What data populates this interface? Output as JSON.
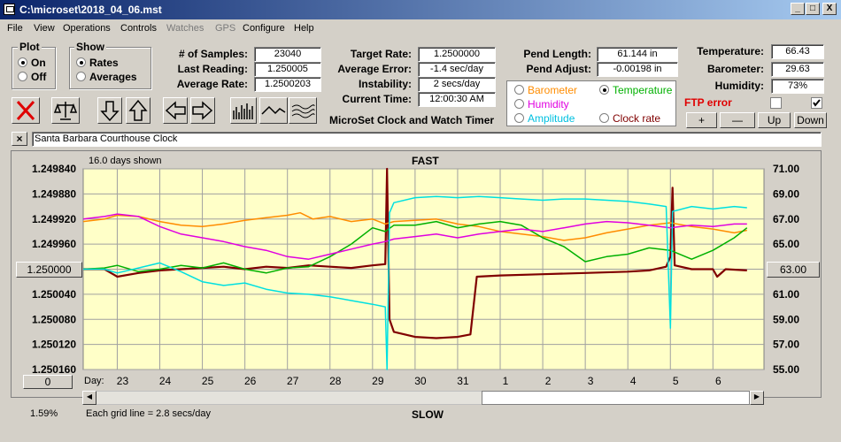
{
  "window": {
    "title": "C:\\microset\\2018_04_06.mst",
    "btn_min": "_",
    "btn_max": "□",
    "btn_close": "X"
  },
  "menu": [
    "File",
    "View",
    "Operations",
    "Controls",
    "Watches",
    "GPS",
    "Configure",
    "Help"
  ],
  "plot_group": {
    "title": "Plot",
    "on": "On",
    "off": "Off",
    "selected": "On"
  },
  "show_group": {
    "title": "Show",
    "rates": "Rates",
    "averages": "Averages",
    "selected": "Rates"
  },
  "stats": {
    "samples_label": "# of Samples:",
    "samples": "23040",
    "last_label": "Last Reading:",
    "last": "1.250005",
    "avg_rate_label": "Average Rate:",
    "avg_rate": "1.2500203",
    "target_label": "Target Rate:",
    "target": "1.2500000",
    "avg_err_label": "Average Error:",
    "avg_err": "-1.4 sec/day",
    "instab_label": "Instability:",
    "instab": "2 secs/day",
    "time_label": "Current Time:",
    "time": "12:00:30 AM",
    "pend_len_label": "Pend Length:",
    "pend_len": "61.144 in",
    "pend_adj_label": "Pend Adjust:",
    "pend_adj": "-0.00198 in",
    "temp_label": "Temperature:",
    "temp": "66.43",
    "baro_label": "Barometer:",
    "baro": "29.63",
    "hum_label": "Humidity:",
    "hum": "73%"
  },
  "app_title": "MicroSet Clock and Watch Timer",
  "sensor_options": {
    "barometer": "Barometer",
    "temperature": "Temperature",
    "humidity": "Humidity",
    "amplitude": "Amplitude",
    "clock_rate": "Clock rate",
    "selected": "Temperature"
  },
  "ftp": {
    "label": "FTP error",
    "checked": false,
    "check2": true
  },
  "scale_buttons": {
    "plus": "+",
    "minus": "—",
    "up": "Up",
    "down": "Down"
  },
  "clock_name": "Santa Barbara Courthouse Clock",
  "close_x": "×",
  "colors": {
    "barometer": "#ff8c00",
    "temperature": "#00b000",
    "humidity": "#e000e0",
    "amplitude": "#00e0e0",
    "rate": "#800000",
    "chart_bg": "#ffffc8"
  },
  "chart_data": {
    "type": "line",
    "days_shown": "16.0 days shown",
    "top_label": "FAST",
    "bottom_label": "SLOW",
    "grid_note": "Each grid line = 2.8 secs/day",
    "day_label": "Day:",
    "left_axis": {
      "ticks": [
        "1.249840",
        "1.249880",
        "1.249920",
        "1.249960",
        "1.250000",
        "1.250040",
        "1.250080",
        "1.250120",
        "1.250160"
      ],
      "range": [
        1.24984,
        1.25016
      ]
    },
    "right_axis": {
      "ticks": [
        "71.00",
        "69.00",
        "67.00",
        "65.00",
        "63.00",
        "61.00",
        "59.00",
        "57.00",
        "55.00"
      ],
      "range": [
        55,
        71
      ]
    },
    "left_button": "1.250000",
    "right_button": "63.00",
    "zero_button": "0",
    "percent": "1.59%",
    "days": [
      "23",
      "24",
      "25",
      "26",
      "27",
      "28",
      "29",
      "30",
      "31",
      "1",
      "2",
      "3",
      "4",
      "5",
      "6"
    ],
    "x_range": [
      22.2,
      38.2
    ],
    "series": [
      {
        "key": "rate",
        "color": "#800000",
        "points": [
          [
            22.2,
            63.0
          ],
          [
            22.7,
            63.0
          ],
          [
            23.0,
            62.4
          ],
          [
            23.5,
            62.7
          ],
          [
            24.0,
            62.9
          ],
          [
            24.5,
            63.0
          ],
          [
            25.0,
            63.1
          ],
          [
            25.5,
            63.2
          ],
          [
            26.0,
            63.0
          ],
          [
            26.5,
            63.2
          ],
          [
            27.0,
            63.1
          ],
          [
            27.5,
            63.3
          ],
          [
            28.0,
            63.2
          ],
          [
            28.5,
            63.1
          ],
          [
            29.0,
            63.3
          ],
          [
            29.3,
            63.4
          ],
          [
            29.34,
            71.0
          ],
          [
            29.4,
            59.0
          ],
          [
            29.5,
            58.0
          ],
          [
            30.0,
            57.6
          ],
          [
            30.5,
            57.5
          ],
          [
            31.0,
            57.6
          ],
          [
            31.3,
            57.8
          ],
          [
            31.45,
            62.4
          ],
          [
            32.0,
            62.5
          ],
          [
            33.0,
            62.6
          ],
          [
            34.0,
            62.7
          ],
          [
            35.0,
            62.8
          ],
          [
            35.5,
            62.9
          ],
          [
            35.9,
            63.2
          ],
          [
            36.0,
            64.0
          ],
          [
            36.05,
            69.5
          ],
          [
            36.1,
            63.3
          ],
          [
            36.5,
            63.0
          ],
          [
            37.0,
            63.0
          ],
          [
            37.1,
            62.4
          ],
          [
            37.3,
            63.0
          ],
          [
            37.8,
            62.9
          ]
        ]
      },
      {
        "key": "barometer",
        "color": "#ff8c00",
        "points": [
          [
            22.2,
            66.8
          ],
          [
            22.7,
            67.0
          ],
          [
            23.0,
            67.3
          ],
          [
            23.5,
            67.2
          ],
          [
            24.0,
            66.8
          ],
          [
            24.5,
            66.5
          ],
          [
            25.0,
            66.4
          ],
          [
            25.5,
            66.6
          ],
          [
            26.0,
            66.9
          ],
          [
            26.5,
            67.1
          ],
          [
            27.0,
            67.3
          ],
          [
            27.3,
            67.5
          ],
          [
            27.6,
            67.0
          ],
          [
            28.0,
            67.2
          ],
          [
            28.5,
            66.8
          ],
          [
            29.0,
            67.0
          ],
          [
            29.3,
            66.6
          ],
          [
            29.5,
            66.8
          ],
          [
            30.0,
            66.9
          ],
          [
            30.5,
            67.0
          ],
          [
            31.0,
            66.6
          ],
          [
            31.5,
            66.4
          ],
          [
            32.0,
            66.0
          ],
          [
            32.5,
            65.8
          ],
          [
            33.0,
            65.6
          ],
          [
            33.5,
            65.3
          ],
          [
            34.0,
            65.5
          ],
          [
            34.5,
            65.9
          ],
          [
            35.0,
            66.2
          ],
          [
            35.5,
            66.5
          ],
          [
            36.0,
            66.7
          ],
          [
            36.5,
            66.4
          ],
          [
            37.0,
            66.2
          ],
          [
            37.5,
            65.9
          ],
          [
            37.8,
            66.1
          ]
        ]
      },
      {
        "key": "temperature",
        "color": "#00b000",
        "points": [
          [
            22.2,
            63.0
          ],
          [
            22.7,
            63.1
          ],
          [
            23.0,
            63.3
          ],
          [
            23.5,
            62.8
          ],
          [
            24.0,
            63.0
          ],
          [
            24.5,
            63.3
          ],
          [
            25.0,
            63.1
          ],
          [
            25.5,
            63.5
          ],
          [
            26.0,
            63.0
          ],
          [
            26.5,
            62.7
          ],
          [
            27.0,
            63.1
          ],
          [
            27.5,
            63.2
          ],
          [
            28.0,
            64.0
          ],
          [
            28.5,
            65.0
          ],
          [
            29.0,
            66.3
          ],
          [
            29.3,
            66.0
          ],
          [
            29.5,
            66.5
          ],
          [
            30.0,
            66.5
          ],
          [
            30.5,
            66.8
          ],
          [
            31.0,
            66.3
          ],
          [
            31.5,
            66.6
          ],
          [
            32.0,
            66.8
          ],
          [
            32.5,
            66.5
          ],
          [
            33.0,
            65.5
          ],
          [
            33.5,
            64.8
          ],
          [
            34.0,
            63.6
          ],
          [
            34.5,
            64.0
          ],
          [
            35.0,
            64.2
          ],
          [
            35.5,
            64.7
          ],
          [
            36.0,
            64.5
          ],
          [
            36.5,
            63.8
          ],
          [
            37.0,
            64.5
          ],
          [
            37.5,
            65.5
          ],
          [
            37.8,
            66.3
          ]
        ]
      },
      {
        "key": "humidity",
        "color": "#e000e0",
        "points": [
          [
            22.2,
            67.0
          ],
          [
            22.7,
            67.2
          ],
          [
            23.0,
            67.4
          ],
          [
            23.5,
            67.2
          ],
          [
            24.0,
            66.4
          ],
          [
            24.5,
            65.8
          ],
          [
            25.0,
            65.5
          ],
          [
            25.5,
            65.2
          ],
          [
            26.0,
            64.8
          ],
          [
            26.5,
            64.5
          ],
          [
            27.0,
            64.0
          ],
          [
            27.5,
            63.8
          ],
          [
            28.0,
            64.2
          ],
          [
            28.5,
            64.6
          ],
          [
            29.0,
            65.0
          ],
          [
            29.3,
            65.2
          ],
          [
            29.5,
            65.4
          ],
          [
            30.0,
            65.6
          ],
          [
            30.5,
            65.8
          ],
          [
            31.0,
            65.5
          ],
          [
            31.5,
            65.8
          ],
          [
            32.0,
            66.0
          ],
          [
            32.5,
            66.2
          ],
          [
            33.0,
            66.0
          ],
          [
            33.5,
            66.3
          ],
          [
            34.0,
            66.6
          ],
          [
            34.5,
            66.8
          ],
          [
            35.0,
            66.7
          ],
          [
            35.5,
            66.5
          ],
          [
            36.0,
            66.3
          ],
          [
            36.5,
            66.5
          ],
          [
            37.0,
            66.4
          ],
          [
            37.5,
            66.6
          ],
          [
            37.8,
            66.6
          ]
        ]
      },
      {
        "key": "amplitude",
        "color": "#00e0e0",
        "points": [
          [
            22.2,
            63.0
          ],
          [
            22.7,
            63.0
          ],
          [
            23.0,
            62.7
          ],
          [
            23.5,
            63.1
          ],
          [
            24.0,
            63.5
          ],
          [
            24.5,
            62.8
          ],
          [
            25.0,
            62.0
          ],
          [
            25.5,
            61.7
          ],
          [
            26.0,
            61.9
          ],
          [
            26.5,
            61.4
          ],
          [
            27.0,
            61.1
          ],
          [
            27.5,
            61.0
          ],
          [
            28.0,
            60.8
          ],
          [
            28.5,
            60.5
          ],
          [
            29.0,
            60.2
          ],
          [
            29.3,
            60.0
          ],
          [
            29.34,
            55.0
          ],
          [
            29.4,
            67.5
          ],
          [
            29.5,
            68.3
          ],
          [
            30.0,
            68.7
          ],
          [
            30.5,
            68.8
          ],
          [
            31.0,
            68.7
          ],
          [
            31.5,
            68.8
          ],
          [
            32.0,
            68.7
          ],
          [
            32.5,
            68.6
          ],
          [
            33.0,
            68.5
          ],
          [
            33.5,
            68.6
          ],
          [
            34.0,
            68.6
          ],
          [
            34.5,
            68.5
          ],
          [
            35.0,
            68.4
          ],
          [
            35.5,
            68.2
          ],
          [
            35.9,
            68.0
          ],
          [
            36.0,
            58.3
          ],
          [
            36.05,
            67.6
          ],
          [
            36.5,
            68.0
          ],
          [
            37.0,
            67.8
          ],
          [
            37.5,
            68.0
          ],
          [
            37.8,
            67.9
          ]
        ]
      }
    ]
  }
}
